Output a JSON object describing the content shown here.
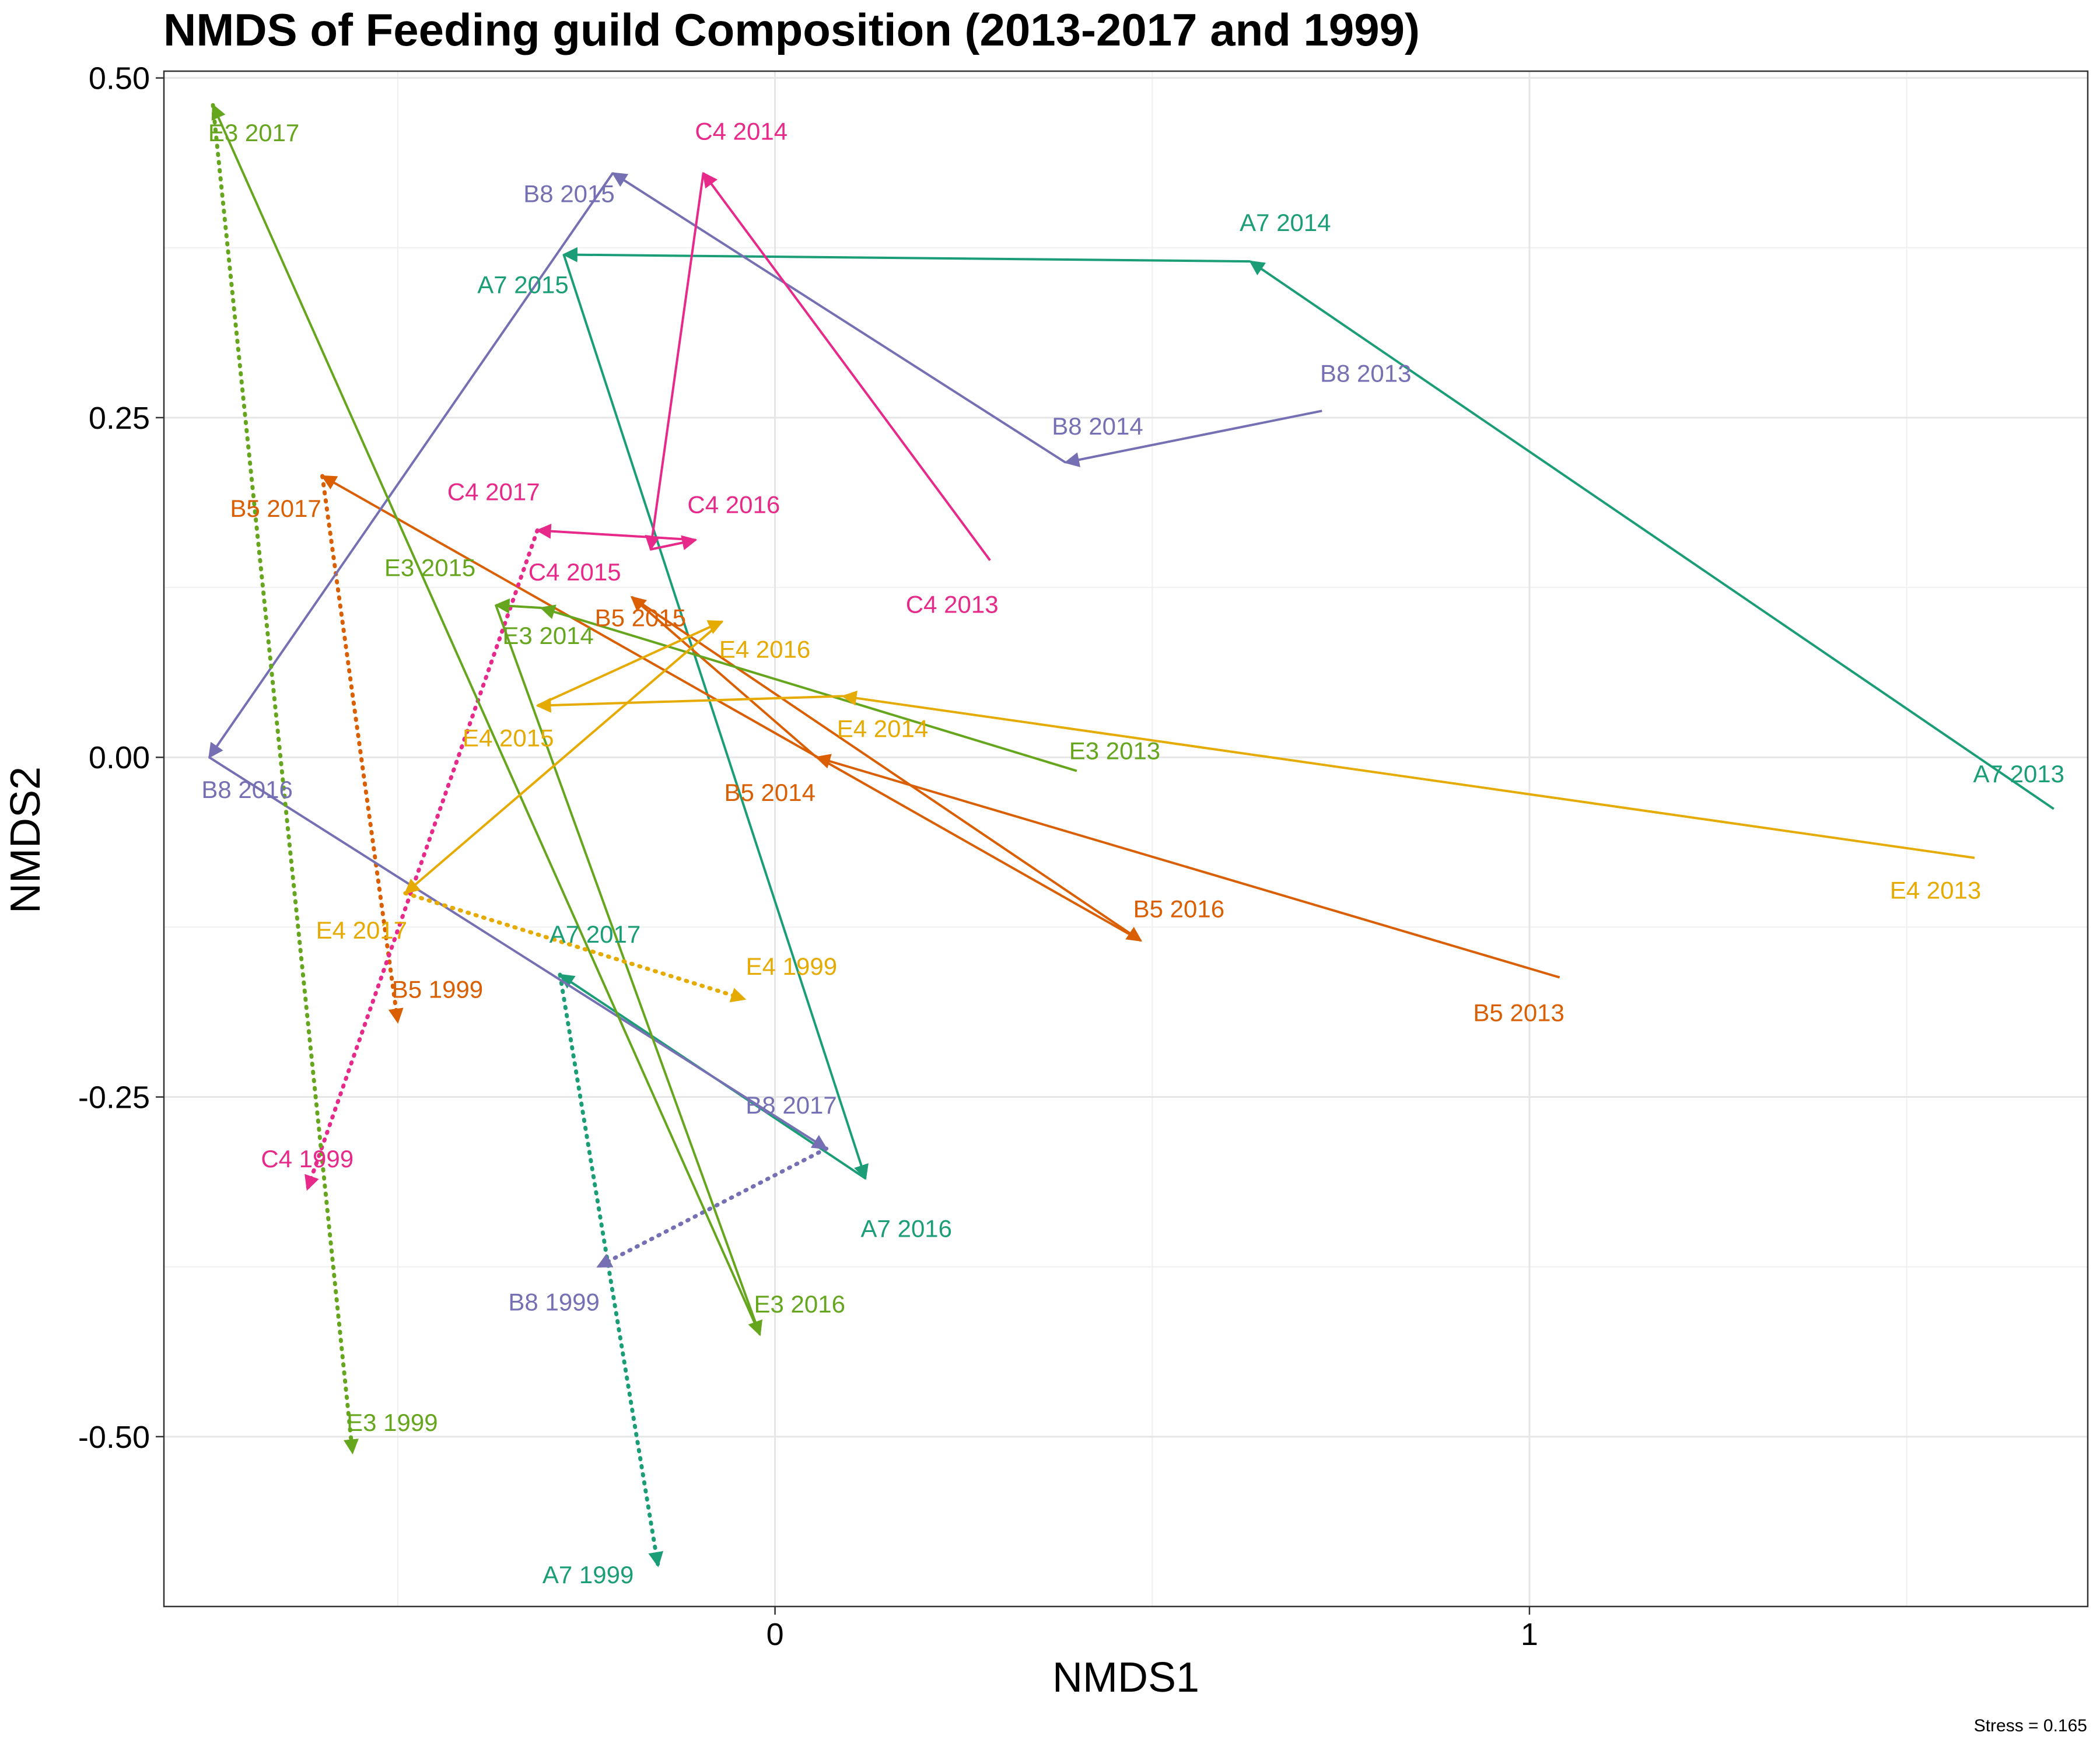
{
  "chart_data": {
    "type": "line",
    "title": "NMDS of Feeding guild Composition (2013-2017 and 1999)",
    "xlabel": "NMDS1",
    "ylabel": "NMDS2",
    "xlim": [
      -0.81,
      1.74
    ],
    "ylim": [
      -0.625,
      0.505
    ],
    "x_ticks": [
      {
        "value": 0,
        "label": "0"
      },
      {
        "value": 1,
        "label": "1"
      }
    ],
    "y_ticks": [
      {
        "value": 0.5,
        "label": "0.50"
      },
      {
        "value": 0.25,
        "label": "0.25"
      },
      {
        "value": 0,
        "label": "0.00"
      },
      {
        "value": -0.25,
        "label": "-0.25"
      },
      {
        "value": -0.5,
        "label": "-0.50"
      }
    ],
    "grid": true,
    "stress_note": "Stress = 0.165",
    "series": [
      {
        "name": "A7",
        "color": "#1b9e77",
        "points": [
          {
            "label": "A7 2013",
            "x": 1.695,
            "y": -0.038
          },
          {
            "label": "A7 2014",
            "x": 0.63,
            "y": 0.365
          },
          {
            "label": "A7 2015",
            "x": -0.28,
            "y": 0.37
          },
          {
            "label": "A7 2016",
            "x": 0.12,
            "y": -0.31
          },
          {
            "label": "A7 2017",
            "x": -0.285,
            "y": -0.16
          }
        ],
        "baseline": {
          "label": "A7 1999",
          "x": -0.155,
          "y": -0.595
        }
      },
      {
        "name": "B5",
        "color": "#d95f02",
        "points": [
          {
            "label": "B5 2013",
            "x": 1.04,
            "y": -0.162
          },
          {
            "label": "B5 2014",
            "x": 0.055,
            "y": 0.0
          },
          {
            "label": "B5 2015",
            "x": -0.19,
            "y": 0.118
          },
          {
            "label": "B5 2016",
            "x": 0.485,
            "y": -0.135
          },
          {
            "label": "B5 2017",
            "x": -0.6,
            "y": 0.207
          }
        ],
        "baseline": {
          "label": "B5 1999",
          "x": -0.5,
          "y": -0.195
        }
      },
      {
        "name": "B8",
        "color": "#7570b3",
        "points": [
          {
            "label": "B8 2013",
            "x": 0.725,
            "y": 0.255
          },
          {
            "label": "B8 2014",
            "x": 0.385,
            "y": 0.217
          },
          {
            "label": "B8 2015",
            "x": -0.215,
            "y": 0.43
          },
          {
            "label": "B8 2016",
            "x": -0.75,
            "y": 0.0
          },
          {
            "label": "B8 2017",
            "x": 0.068,
            "y": -0.288
          }
        ],
        "baseline": {
          "label": "B8 1999",
          "x": -0.235,
          "y": -0.375
        }
      },
      {
        "name": "C4",
        "color": "#e7298a",
        "points": [
          {
            "label": "C4 2013",
            "x": 0.285,
            "y": 0.145
          },
          {
            "label": "C4 2014",
            "x": -0.095,
            "y": 0.43
          },
          {
            "label": "C4 2015",
            "x": -0.165,
            "y": 0.153
          },
          {
            "label": "C4 2016",
            "x": -0.105,
            "y": 0.16
          },
          {
            "label": "C4 2017",
            "x": -0.315,
            "y": 0.167
          }
        ],
        "baseline": {
          "label": "C4 1999",
          "x": -0.62,
          "y": -0.318
        }
      },
      {
        "name": "E3",
        "color": "#66a61e",
        "points": [
          {
            "label": "E3 2013",
            "x": 0.4,
            "y": -0.01
          },
          {
            "label": "E3 2014",
            "x": -0.31,
            "y": 0.11
          },
          {
            "label": "E3 2015",
            "x": -0.37,
            "y": 0.112
          },
          {
            "label": "E3 2016",
            "x": -0.02,
            "y": -0.425
          },
          {
            "label": "E3 2017",
            "x": -0.745,
            "y": 0.48
          }
        ],
        "baseline": {
          "label": "E3 1999",
          "x": -0.56,
          "y": -0.512
        }
      },
      {
        "name": "E4",
        "color": "#e6ab02",
        "points": [
          {
            "label": "E4 2013",
            "x": 1.59,
            "y": -0.074
          },
          {
            "label": "E4 2014",
            "x": 0.09,
            "y": 0.045
          },
          {
            "label": "E4 2015",
            "x": -0.315,
            "y": 0.038
          },
          {
            "label": "E4 2016",
            "x": -0.07,
            "y": 0.1
          },
          {
            "label": "E4 2017",
            "x": -0.49,
            "y": -0.1
          }
        ],
        "baseline": {
          "label": "E4 1999",
          "x": -0.04,
          "y": -0.178
        }
      }
    ]
  }
}
